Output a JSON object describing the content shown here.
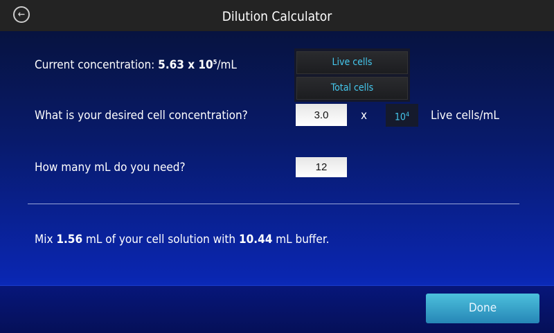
{
  "header": {
    "title": "Dilution Calculator",
    "back_icon": "back-arrow-circle-icon"
  },
  "current": {
    "label": "Current concentration:",
    "value": "5.63 x 10",
    "exponent": "5",
    "unit": "/mL"
  },
  "toggle": {
    "live": "Live cells",
    "total": "Total cells"
  },
  "desired": {
    "label": "What is your desired cell concentration?",
    "value": "3.0",
    "times": "x",
    "exp_base": "10",
    "exp_power": "4",
    "unit": "Live cells/mL"
  },
  "volume": {
    "label": "How many mL do you need?",
    "value": "12"
  },
  "result": {
    "p1": "Mix ",
    "cell_volume": "1.56",
    "p2": " mL of your cell solution with ",
    "buffer_volume": "10.44",
    "p3": " mL buffer."
  },
  "footer": {
    "done": "Done"
  },
  "colors": {
    "accent": "#45c8ee",
    "button": "#3aa6cc"
  }
}
